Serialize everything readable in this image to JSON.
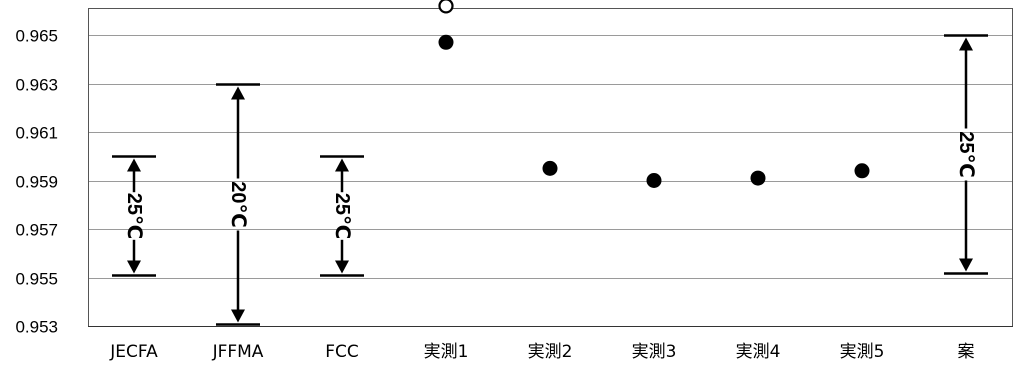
{
  "chart_data": {
    "type": "scatter",
    "title": "",
    "xlabel": "",
    "ylabel": "",
    "ylim": [
      0.953,
      0.966
    ],
    "y_ticks": [
      "0.953",
      "0.955",
      "0.957",
      "0.959",
      "0.961",
      "0.963",
      "0.965"
    ],
    "grid": "horizontal",
    "categories": [
      "JECFA",
      "JFFMA",
      "FCC",
      "実測1",
      "実測2",
      "実測3",
      "実測4",
      "実測5",
      "案"
    ],
    "points": [
      {
        "category": "実測1",
        "value": 0.9647,
        "marker": "filled"
      },
      {
        "category": "実測1",
        "value": 0.9662,
        "marker": "open"
      },
      {
        "category": "実測2",
        "value": 0.9595,
        "marker": "filled"
      },
      {
        "category": "実測3",
        "value": 0.959,
        "marker": "filled"
      },
      {
        "category": "実測4",
        "value": 0.9591,
        "marker": "filled"
      },
      {
        "category": "実測5",
        "value": 0.9594,
        "marker": "filled"
      }
    ],
    "ranges": [
      {
        "category": "JECFA",
        "low": 0.9551,
        "high": 0.96,
        "label": "25℃"
      },
      {
        "category": "JFFMA",
        "low": 0.9531,
        "high": 0.963,
        "label": "20℃"
      },
      {
        "category": "FCC",
        "low": 0.9551,
        "high": 0.96,
        "label": "25℃"
      },
      {
        "category": "案",
        "low": 0.9552,
        "high": 0.965,
        "label": "25℃"
      }
    ]
  }
}
